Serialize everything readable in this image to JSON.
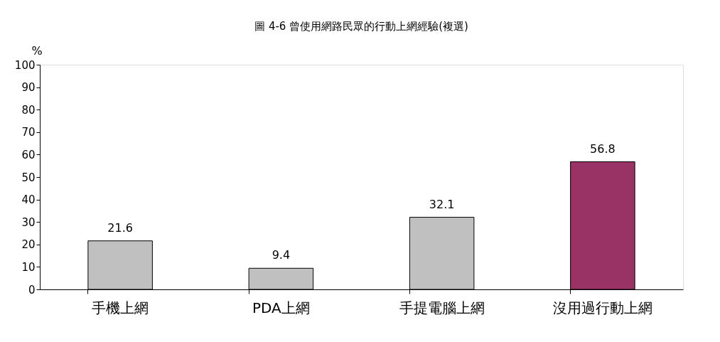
{
  "chart_data": {
    "type": "bar",
    "title": "圖 4-6 曾使用網路民眾的行動上網經驗(複選)",
    "ylabel": "%",
    "categories": [
      "手機上網",
      "PDA上網",
      "手提電腦上網",
      "沒用過行動上網"
    ],
    "values": [
      21.6,
      9.4,
      32.1,
      56.8
    ],
    "colors": [
      "#c0c0c0",
      "#c0c0c0",
      "#c0c0c0",
      "#993366"
    ],
    "ylim": [
      0,
      100
    ],
    "yticks": [
      0,
      10,
      20,
      30,
      40,
      50,
      60,
      70,
      80,
      90,
      100
    ],
    "data_labels": true,
    "grid": false
  }
}
